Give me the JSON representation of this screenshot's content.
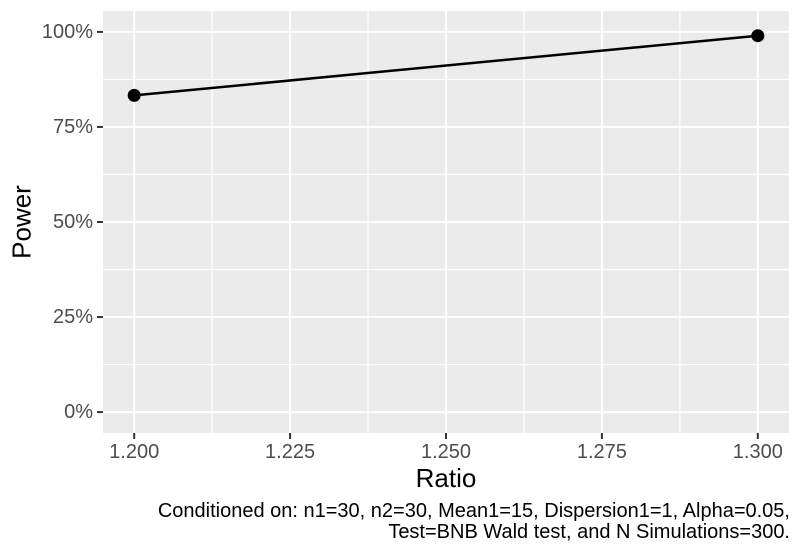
{
  "figure": {
    "background": "#FFFFFF",
    "panel_background": "#EBEBEB",
    "gridline_color": "#FFFFFF",
    "tick_label_color": "#4D4D4D",
    "tick_mark_color": "#333333",
    "line_color": "#000000",
    "point_color": "#000000"
  },
  "chart_data": {
    "type": "line",
    "title": "",
    "xlabel": "Ratio",
    "ylabel": "Power",
    "legend": "none",
    "grid": true,
    "xlim": [
      1.195,
      1.305
    ],
    "ylim_pct": [
      -5.5,
      105.5
    ],
    "series": [
      {
        "name": "Power",
        "points": [
          {
            "x": 1.2,
            "y_pct": 83.3
          },
          {
            "x": 1.3,
            "y_pct": 99.0
          }
        ]
      }
    ],
    "x_ticks": [
      {
        "value": 1.2,
        "label": "1.200"
      },
      {
        "value": 1.225,
        "label": "1.225"
      },
      {
        "value": 1.25,
        "label": "1.250"
      },
      {
        "value": 1.275,
        "label": "1.275"
      },
      {
        "value": 1.3,
        "label": "1.300"
      }
    ],
    "y_ticks": [
      {
        "value": 0,
        "label": "0%"
      },
      {
        "value": 25,
        "label": "25%"
      },
      {
        "value": 50,
        "label": "50%"
      },
      {
        "value": 75,
        "label": "75%"
      },
      {
        "value": 100,
        "label": "100%"
      }
    ],
    "x_minor_gridlines": [
      1.2125,
      1.2375,
      1.2625,
      1.2875
    ],
    "y_minor_gridlines": [
      12.5,
      37.5,
      62.5,
      87.5
    ],
    "caption_lines": [
      "Conditioned on: n1=30, n2=30, Mean1=15, Dispersion1=1, Alpha=0.05,",
      "Test=BNB Wald test, and N Simulations=300."
    ]
  }
}
